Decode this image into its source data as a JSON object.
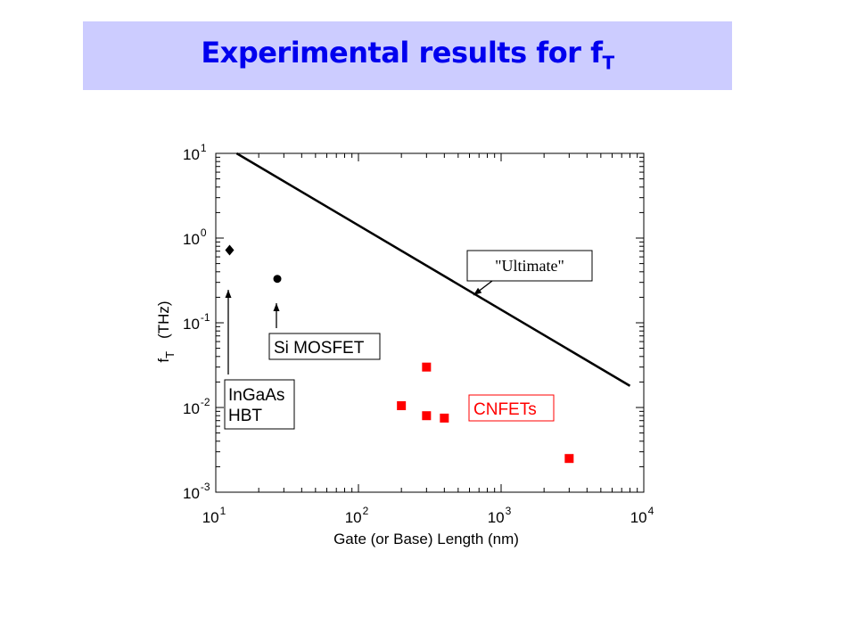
{
  "title": {
    "main": "Experimental results for f",
    "sub": "T"
  },
  "chart_data": {
    "type": "scatter",
    "xscale": "log",
    "yscale": "log",
    "xlim": [
      10,
      10000
    ],
    "ylim": [
      0.001,
      10
    ],
    "xlabel": "Gate (or Base) Length  (nm)",
    "ylabel": {
      "symbol": "f",
      "sub": "T",
      "unit": "(THz)"
    },
    "x_ticks": [
      {
        "value": 10,
        "base": "10",
        "exp": "1"
      },
      {
        "value": 100,
        "base": "10",
        "exp": "2"
      },
      {
        "value": 1000,
        "base": "10",
        "exp": "3"
      },
      {
        "value": 10000,
        "base": "10",
        "exp": "4"
      }
    ],
    "y_ticks": [
      {
        "value": 10,
        "base": "10",
        "exp": "1"
      },
      {
        "value": 1,
        "base": "10",
        "exp": "0"
      },
      {
        "value": 0.1,
        "base": "10",
        "exp": "-1"
      },
      {
        "value": 0.01,
        "base": "10",
        "exp": "-2"
      },
      {
        "value": 0.001,
        "base": "10",
        "exp": "-3"
      }
    ],
    "grid": false,
    "series": [
      {
        "name": "CNFETs",
        "marker": "square",
        "color": "#ff0000",
        "points": [
          {
            "x": 200,
            "y": 0.0105
          },
          {
            "x": 300,
            "y": 0.03
          },
          {
            "x": 300,
            "y": 0.008
          },
          {
            "x": 400,
            "y": 0.0075
          },
          {
            "x": 3000,
            "y": 0.0025
          }
        ]
      },
      {
        "name": "InGaAs HBT",
        "marker": "diamond",
        "color": "#000000",
        "points": [
          {
            "x": 12.5,
            "y": 0.72
          }
        ]
      },
      {
        "name": "Si MOSFET",
        "marker": "circle",
        "color": "#000000",
        "points": [
          {
            "x": 27,
            "y": 0.33
          }
        ]
      }
    ],
    "line": {
      "name": "\"Ultimate\"",
      "color": "#000000",
      "points": [
        {
          "x": 14,
          "y": 10
        },
        {
          "x": 8000,
          "y": 0.018
        }
      ]
    },
    "annotations": [
      {
        "id": "ultimate",
        "lines": [
          "\"Ultimate\""
        ]
      },
      {
        "id": "si-mosfet",
        "lines": [
          "Si MOSFET"
        ]
      },
      {
        "id": "ingaas-hbt",
        "lines": [
          "InGaAs",
          "HBT"
        ]
      },
      {
        "id": "cnfets",
        "lines": [
          "CNFETs"
        ]
      }
    ]
  }
}
